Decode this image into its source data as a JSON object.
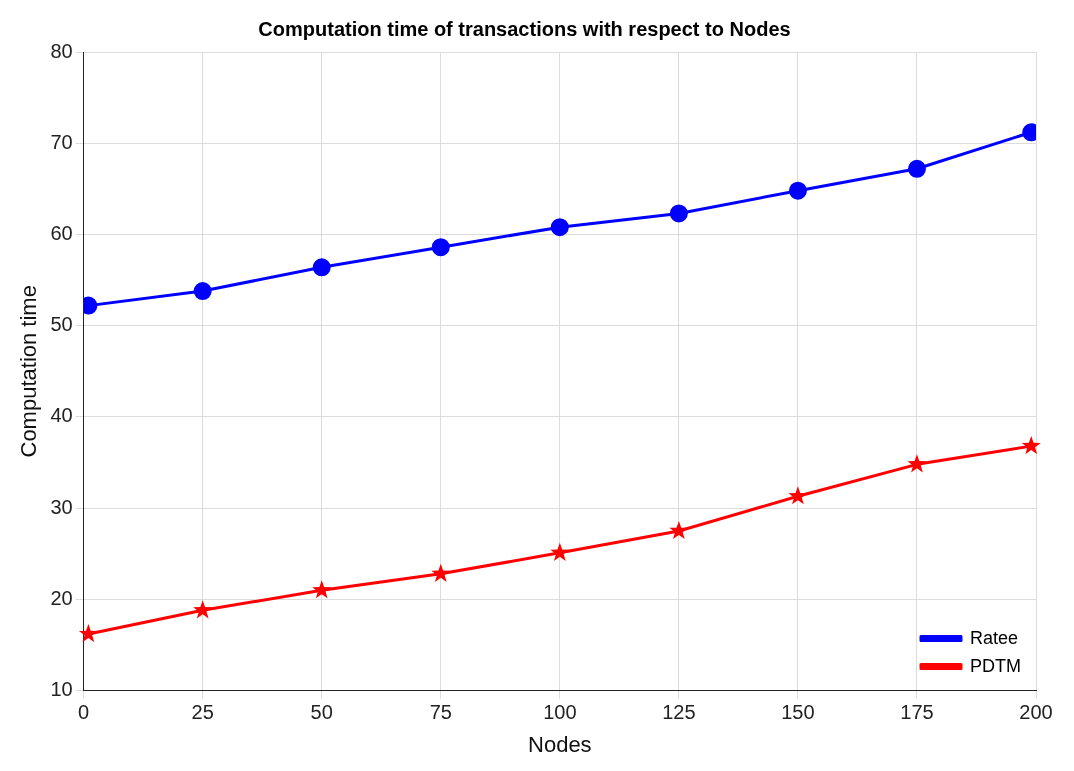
{
  "chart_data": {
    "type": "line",
    "title": "Computation time of transactions with respect to Nodes",
    "xlabel": "Nodes",
    "ylabel": "Computation time",
    "x": [
      1,
      25,
      50,
      75,
      100,
      125,
      150,
      175,
      199
    ],
    "series": [
      {
        "name": "Ratee",
        "color": "#0000ff",
        "marker": "circle",
        "values": [
          52.2,
          53.8,
          56.4,
          58.6,
          60.8,
          62.3,
          64.8,
          67.2,
          71.2
        ]
      },
      {
        "name": "PDTM",
        "color": "#ff0000",
        "marker": "star",
        "values": [
          16.2,
          18.8,
          21.0,
          22.8,
          25.1,
          27.5,
          31.3,
          34.8,
          36.8
        ]
      }
    ],
    "xlim": [
      0,
      200
    ],
    "xticks": [
      0,
      25,
      50,
      75,
      100,
      125,
      150,
      175,
      200
    ],
    "ylim": [
      10,
      80
    ],
    "yticks": [
      10,
      20,
      30,
      40,
      50,
      60,
      70,
      80
    ],
    "grid": true,
    "legend": "bottom right"
  }
}
